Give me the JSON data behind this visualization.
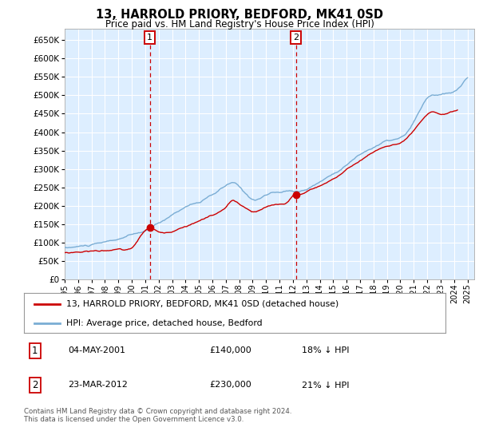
{
  "title": "13, HARROLD PRIORY, BEDFORD, MK41 0SD",
  "subtitle": "Price paid vs. HM Land Registry's House Price Index (HPI)",
  "legend_line1": "13, HARROLD PRIORY, BEDFORD, MK41 0SD (detached house)",
  "legend_line2": "HPI: Average price, detached house, Bedford",
  "footnote": "Contains HM Land Registry data © Crown copyright and database right 2024.\nThis data is licensed under the Open Government Licence v3.0.",
  "annotation1_date": "04-MAY-2001",
  "annotation1_price": "£140,000",
  "annotation1_hpi": "18% ↓ HPI",
  "annotation2_date": "23-MAR-2012",
  "annotation2_price": "£230,000",
  "annotation2_hpi": "21% ↓ HPI",
  "ylim": [
    0,
    680000
  ],
  "yticks": [
    0,
    50000,
    100000,
    150000,
    200000,
    250000,
    300000,
    350000,
    400000,
    450000,
    500000,
    550000,
    600000,
    650000
  ],
  "xlim_start": 1995.0,
  "xlim_end": 2025.5,
  "background_color": "#ffffff",
  "plot_bg_color": "#ddeeff",
  "grid_color": "#ffffff",
  "hpi_color": "#7aadd4",
  "price_color": "#cc0000",
  "vline_color": "#cc0000",
  "annotation_box_color": "#cc0000",
  "ann1_x": 2001.35,
  "ann1_y": 140000,
  "ann2_x": 2012.23,
  "ann2_y": 230000,
  "xtick_years": [
    1995,
    1996,
    1997,
    1998,
    1999,
    2000,
    2001,
    2002,
    2003,
    2004,
    2005,
    2006,
    2007,
    2008,
    2009,
    2010,
    2011,
    2012,
    2013,
    2014,
    2015,
    2016,
    2017,
    2018,
    2019,
    2020,
    2021,
    2022,
    2023,
    2024,
    2025
  ]
}
